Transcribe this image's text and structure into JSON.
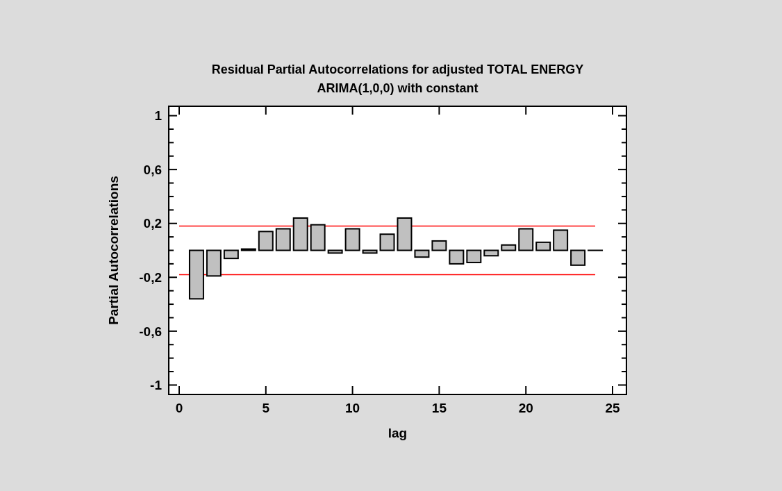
{
  "chart_data": {
    "type": "bar",
    "title": "Residual Partial Autocorrelations for adjusted TOTAL ENERGY",
    "subtitle": "ARIMA(1,0,0) with constant",
    "xlabel": "lag",
    "ylabel": "Partial Autocorrelations",
    "x": [
      1,
      2,
      3,
      4,
      5,
      6,
      7,
      8,
      9,
      10,
      11,
      12,
      13,
      14,
      15,
      16,
      17,
      18,
      19,
      20,
      21,
      22,
      23,
      24
    ],
    "values": [
      -0.36,
      -0.19,
      -0.06,
      0.01,
      0.14,
      0.16,
      0.24,
      0.19,
      -0.02,
      0.16,
      -0.02,
      0.12,
      0.24,
      -0.05,
      0.07,
      -0.1,
      -0.09,
      -0.04,
      0.04,
      0.16,
      0.06,
      0.15,
      -0.11,
      0
    ],
    "color": "#c0c0c0",
    "xlim": [
      -0.6,
      25.8
    ],
    "xticks": [
      0,
      5,
      10,
      15,
      20,
      25
    ],
    "ylim": [
      -1.07,
      1.07
    ],
    "yticks": [
      1,
      {
        "value": 0.9,
        "label": null
      },
      {
        "value": 0.8,
        "label": null
      },
      {
        "value": 0.7,
        "label": null
      },
      {
        "value": 0.6,
        "label": "0,6"
      },
      {
        "value": 0.5,
        "label": null
      },
      {
        "value": 0.4,
        "label": null
      },
      {
        "value": 0.3,
        "label": null
      },
      {
        "value": 0.2,
        "label": "0,2"
      },
      {
        "value": 0.1,
        "label": null
      },
      {
        "value": 0,
        "label": null
      },
      {
        "value": -0.1,
        "label": null
      },
      {
        "value": -0.2,
        "label": "-0,2"
      },
      {
        "value": -0.3,
        "label": null
      },
      {
        "value": -0.4,
        "label": null
      },
      {
        "value": -0.5,
        "label": null
      },
      {
        "value": -0.6,
        "label": "-0,6"
      },
      {
        "value": -0.7,
        "label": null
      },
      {
        "value": -0.8,
        "label": null
      },
      {
        "value": -0.9,
        "label": null
      },
      -1
    ],
    "ref_lines": [
      {
        "axis": "y",
        "value": 0.18,
        "color": "#ff0000"
      },
      {
        "axis": "y",
        "value": -0.18,
        "color": "#ff0000"
      }
    ],
    "grid": false
  }
}
